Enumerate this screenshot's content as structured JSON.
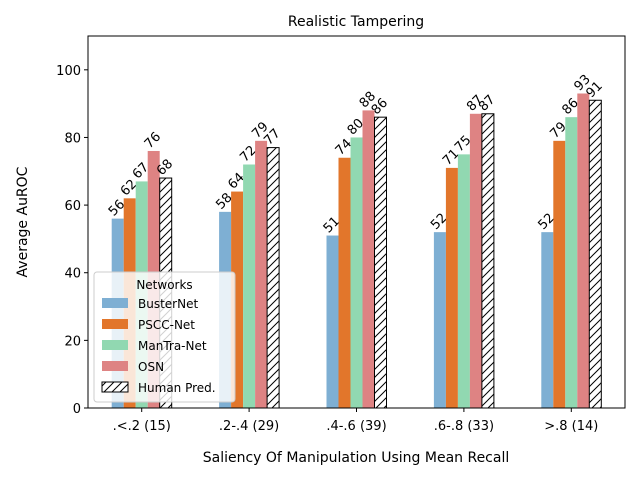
{
  "chart_data": {
    "type": "bar",
    "title": "Realistic Tampering",
    "xlabel": "Saliency Of Manipulation Using Mean Recall",
    "ylabel": "Average AuROC",
    "ylim": [
      0,
      110
    ],
    "yticks": [
      0,
      20,
      40,
      60,
      80,
      100
    ],
    "categories": [
      ".<.2 (15)",
      ".2-.4 (29)",
      ".4-.6 (39)",
      ".6-.8 (33)",
      ">.8 (14)"
    ],
    "series": [
      {
        "name": "BusterNet",
        "color": "#7eafd3",
        "hatch": false,
        "values": [
          56,
          58,
          51,
          52,
          52
        ]
      },
      {
        "name": "PSCC-Net",
        "color": "#e2762b",
        "hatch": false,
        "values": [
          62,
          64,
          74,
          71,
          79
        ]
      },
      {
        "name": "ManTra-Net",
        "color": "#91d8b1",
        "hatch": false,
        "values": [
          67,
          72,
          80,
          75,
          86
        ]
      },
      {
        "name": "OSN",
        "color": "#de8383",
        "hatch": false,
        "values": [
          76,
          79,
          88,
          87,
          93
        ]
      },
      {
        "name": "Human Pred.",
        "color": "#ffffff",
        "hatch": true,
        "values": [
          68,
          77,
          86,
          87,
          91
        ]
      }
    ],
    "legend": {
      "title": "Networks",
      "placement": "lower-left"
    },
    "grid": false
  }
}
